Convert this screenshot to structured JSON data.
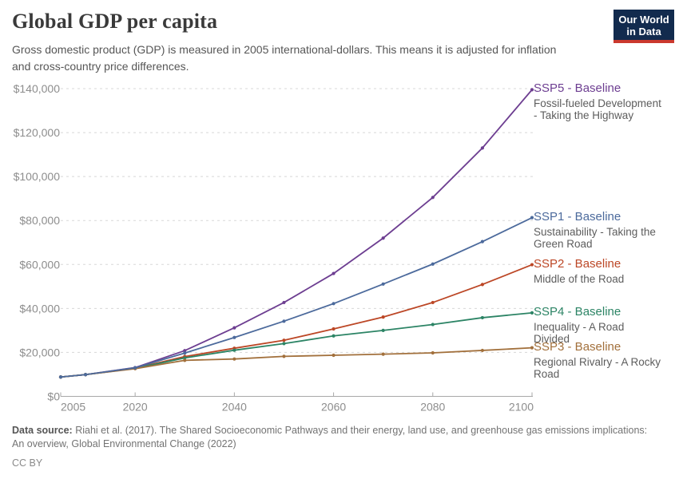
{
  "header": {
    "title": "Global GDP per capita",
    "subtitle_lines": [
      "Gross domestic product (GDP) is measured in 2005 international-dollars. This means it is adjusted for inflation",
      "and cross-country price differences."
    ],
    "logo": {
      "line1": "Our World",
      "line2": "in Data"
    }
  },
  "chart_data": {
    "type": "line",
    "title": "Global GDP per capita",
    "xlabel": "",
    "ylabel": "",
    "x": [
      2005,
      2010,
      2020,
      2030,
      2040,
      2050,
      2060,
      2070,
      2080,
      2090,
      2100
    ],
    "x_ticks": [
      2005,
      2020,
      2040,
      2060,
      2080,
      2100
    ],
    "y_ticks": [
      0,
      20000,
      40000,
      60000,
      80000,
      100000,
      120000,
      140000
    ],
    "y_tick_prefix": "$",
    "xlim": [
      2005,
      2100
    ],
    "ylim": [
      0,
      140000
    ],
    "grid": "horizontal-dashed",
    "legend_position": "right-of-line-ends",
    "series": [
      {
        "id": "ssp5",
        "label": "SSP5 - Baseline",
        "description_lines": [
          "Fossil-fueled Development",
          "- Taking the Highway"
        ],
        "color": "#6d3e91",
        "values": [
          8800,
          9900,
          13100,
          20800,
          31200,
          42700,
          55900,
          72000,
          90500,
          113000,
          139500
        ]
      },
      {
        "id": "ssp1",
        "label": "SSP1 - Baseline",
        "description_lines": [
          "Sustainability - Taking the",
          "Green Road"
        ],
        "color": "#4c6a9c",
        "values": [
          8800,
          9900,
          13000,
          19700,
          26800,
          34200,
          42200,
          51100,
          60200,
          70400,
          81300
        ]
      },
      {
        "id": "ssp2",
        "label": "SSP2 - Baseline",
        "description_lines": [
          "Middle of the Road"
        ],
        "color": "#bc4726",
        "values": [
          8800,
          9900,
          12800,
          18100,
          21900,
          25500,
          30700,
          36100,
          42700,
          50900,
          59900
        ]
      },
      {
        "id": "ssp4",
        "label": "SSP4 - Baseline",
        "description_lines": [
          "Inequality - A Road",
          "Divided"
        ],
        "color": "#2c8465",
        "values": [
          8800,
          9900,
          12700,
          17500,
          21000,
          24000,
          27500,
          30000,
          32700,
          35800,
          38000
        ]
      },
      {
        "id": "ssp3",
        "label": "SSP3 - Baseline",
        "description_lines": [
          "Regional Rivalry - A Rocky",
          "Road"
        ],
        "color": "#a2703c",
        "values": [
          8800,
          9900,
          12600,
          16400,
          17000,
          18200,
          18700,
          19200,
          19800,
          20900,
          22100
        ]
      }
    ]
  },
  "footer": {
    "source_label": "Data source:",
    "source_line1": "Riahi et al. (2017). The Shared Socioeconomic Pathways and their energy, land use, and greenhouse gas emissions implications:",
    "source_line2": "An overview, Global Environmental Change (2022)",
    "license": "CC BY"
  }
}
